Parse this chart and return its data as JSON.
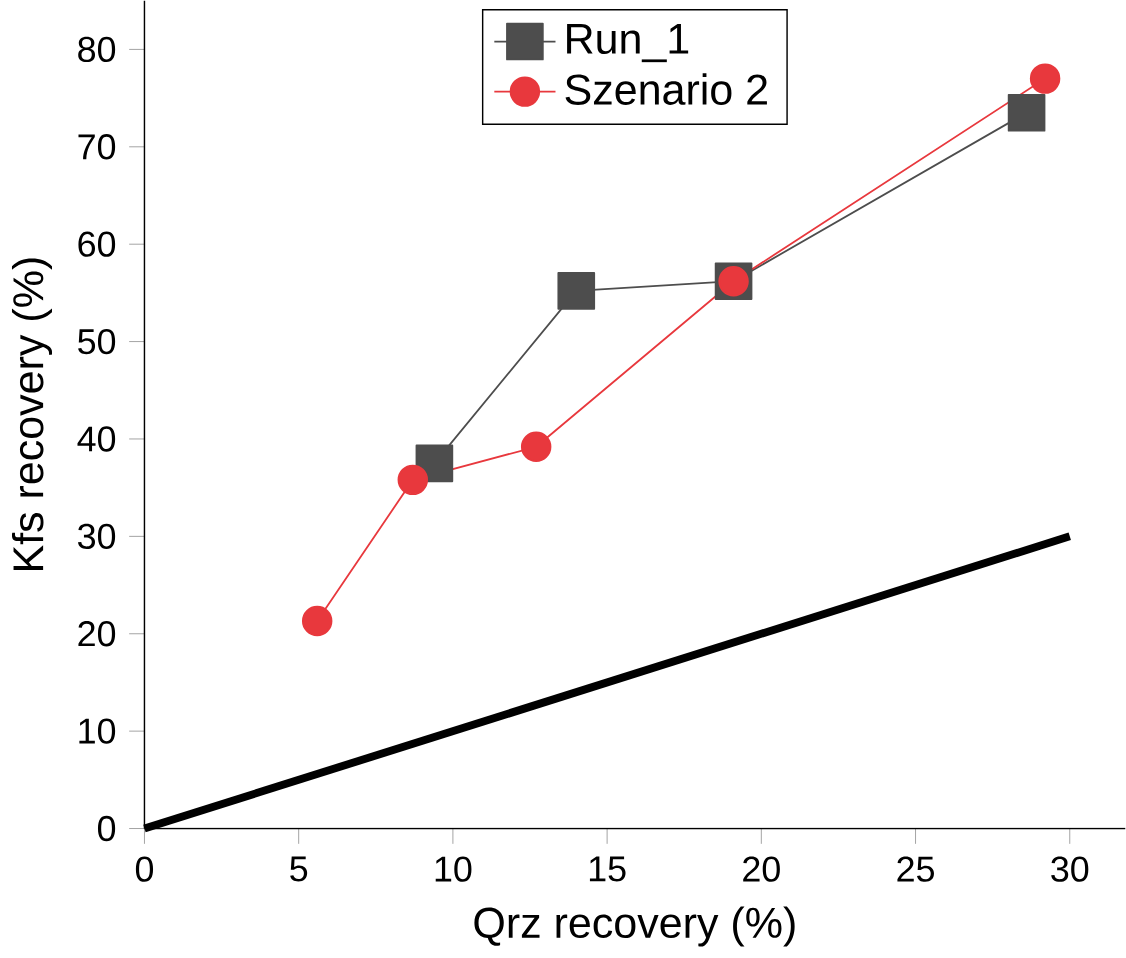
{
  "chart_data": {
    "type": "line",
    "xlabel": "Qrz recovery (%)",
    "ylabel": "Kfs recovery (%)",
    "xlim": [
      0,
      31.8
    ],
    "ylim": [
      0,
      85
    ],
    "xticks": [
      0,
      5,
      10,
      15,
      20,
      25,
      30
    ],
    "yticks": [
      0,
      10,
      20,
      30,
      40,
      50,
      60,
      70,
      80
    ],
    "legend": "top",
    "grid": false,
    "series": [
      {
        "name": "Run_1",
        "color": "#4d4d4d",
        "marker": "square",
        "x": [
          9.4,
          14.0,
          19.1,
          28.6
        ],
        "values": [
          37.5,
          55.2,
          56.2,
          73.5
        ]
      },
      {
        "name": "Szenario 2",
        "color": "#e8383d",
        "marker": "circle",
        "x": [
          5.6,
          8.7,
          12.7,
          19.1,
          29.2
        ],
        "values": [
          21.3,
          35.8,
          39.2,
          56.2,
          77.0
        ]
      },
      {
        "color": "#000000",
        "marker": "none",
        "x": [
          0,
          30
        ],
        "values": [
          0,
          30
        ]
      }
    ]
  }
}
